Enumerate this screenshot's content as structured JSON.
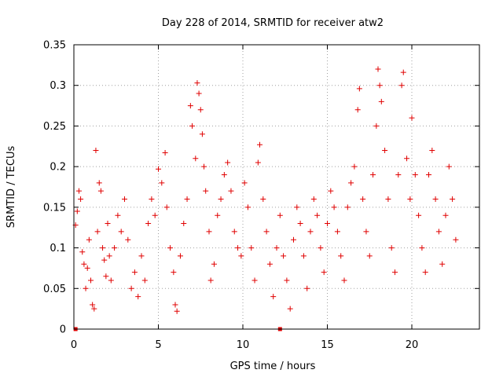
{
  "chart_data": {
    "type": "scatter",
    "title": "Day 228 of 2014, SRMTID for receiver atw2",
    "xlabel": "GPS time / hours",
    "ylabel": "SRMTID / TECUs",
    "xlim": [
      0,
      24
    ],
    "ylim": [
      0,
      0.35
    ],
    "x_ticks": [
      0,
      5,
      10,
      15,
      20
    ],
    "x_tick_labels": [
      "0",
      "5",
      "10",
      "15",
      "20"
    ],
    "y_ticks": [
      0,
      0.05,
      0.1,
      0.15,
      0.2,
      0.25,
      0.3,
      0.35
    ],
    "y_tick_labels": [
      "0",
      "0.05",
      "0.1",
      "0.15",
      "0.2",
      "0.25",
      "0.3",
      "0.35"
    ],
    "grid": true,
    "marker": "plus",
    "color": "#e00000",
    "series": [
      {
        "name": "SRMTID",
        "points": [
          [
            0.1,
            0.128
          ],
          [
            0.2,
            0.145
          ],
          [
            0.3,
            0.17
          ],
          [
            0.4,
            0.16
          ],
          [
            0.5,
            0.095
          ],
          [
            0.6,
            0.08
          ],
          [
            0.7,
            0.05
          ],
          [
            0.8,
            0.075
          ],
          [
            0.9,
            0.11
          ],
          [
            1.0,
            0.06
          ],
          [
            1.1,
            0.03
          ],
          [
            1.2,
            0.025
          ],
          [
            1.3,
            0.22
          ],
          [
            1.4,
            0.12
          ],
          [
            1.5,
            0.18
          ],
          [
            1.6,
            0.17
          ],
          [
            1.7,
            0.1
          ],
          [
            1.8,
            0.085
          ],
          [
            1.9,
            0.065
          ],
          [
            2.0,
            0.13
          ],
          [
            2.1,
            0.09
          ],
          [
            2.2,
            0.06
          ],
          [
            2.4,
            0.1
          ],
          [
            2.6,
            0.14
          ],
          [
            2.8,
            0.12
          ],
          [
            3.0,
            0.16
          ],
          [
            3.2,
            0.11
          ],
          [
            3.4,
            0.05
          ],
          [
            3.6,
            0.07
          ],
          [
            3.8,
            0.04
          ],
          [
            4.0,
            0.09
          ],
          [
            4.2,
            0.06
          ],
          [
            4.4,
            0.13
          ],
          [
            4.6,
            0.16
          ],
          [
            4.8,
            0.14
          ],
          [
            5.0,
            0.197
          ],
          [
            5.2,
            0.18
          ],
          [
            5.4,
            0.217
          ],
          [
            5.5,
            0.15
          ],
          [
            5.7,
            0.1
          ],
          [
            5.9,
            0.07
          ],
          [
            6.0,
            0.03
          ],
          [
            6.1,
            0.022
          ],
          [
            6.3,
            0.09
          ],
          [
            6.5,
            0.13
          ],
          [
            6.7,
            0.16
          ],
          [
            6.9,
            0.275
          ],
          [
            7.0,
            0.25
          ],
          [
            7.2,
            0.21
          ],
          [
            7.3,
            0.303
          ],
          [
            7.4,
            0.29
          ],
          [
            7.5,
            0.27
          ],
          [
            7.6,
            0.24
          ],
          [
            7.7,
            0.2
          ],
          [
            7.8,
            0.17
          ],
          [
            8.0,
            0.12
          ],
          [
            8.1,
            0.06
          ],
          [
            8.3,
            0.08
          ],
          [
            8.5,
            0.14
          ],
          [
            8.7,
            0.16
          ],
          [
            8.9,
            0.19
          ],
          [
            9.1,
            0.205
          ],
          [
            9.3,
            0.17
          ],
          [
            9.5,
            0.12
          ],
          [
            9.7,
            0.1
          ],
          [
            9.9,
            0.09
          ],
          [
            10.1,
            0.18
          ],
          [
            10.3,
            0.15
          ],
          [
            10.5,
            0.1
          ],
          [
            10.7,
            0.06
          ],
          [
            10.9,
            0.205
          ],
          [
            11.0,
            0.227
          ],
          [
            11.2,
            0.16
          ],
          [
            11.4,
            0.12
          ],
          [
            11.6,
            0.08
          ],
          [
            11.8,
            0.04
          ],
          [
            12.0,
            0.1
          ],
          [
            12.2,
            0.14
          ],
          [
            12.4,
            0.09
          ],
          [
            12.6,
            0.06
          ],
          [
            12.8,
            0.025
          ],
          [
            13.0,
            0.11
          ],
          [
            13.2,
            0.15
          ],
          [
            13.4,
            0.13
          ],
          [
            13.6,
            0.09
          ],
          [
            13.8,
            0.05
          ],
          [
            14.0,
            0.12
          ],
          [
            14.2,
            0.16
          ],
          [
            14.4,
            0.14
          ],
          [
            14.6,
            0.1
          ],
          [
            14.8,
            0.07
          ],
          [
            15.0,
            0.13
          ],
          [
            15.2,
            0.17
          ],
          [
            15.4,
            0.15
          ],
          [
            15.6,
            0.12
          ],
          [
            15.8,
            0.09
          ],
          [
            16.0,
            0.06
          ],
          [
            16.2,
            0.15
          ],
          [
            16.4,
            0.18
          ],
          [
            16.6,
            0.2
          ],
          [
            16.8,
            0.27
          ],
          [
            16.9,
            0.296
          ],
          [
            17.1,
            0.16
          ],
          [
            17.3,
            0.12
          ],
          [
            17.5,
            0.09
          ],
          [
            17.7,
            0.19
          ],
          [
            17.9,
            0.25
          ],
          [
            18.0,
            0.32
          ],
          [
            18.1,
            0.3
          ],
          [
            18.2,
            0.28
          ],
          [
            18.4,
            0.22
          ],
          [
            18.6,
            0.16
          ],
          [
            18.8,
            0.1
          ],
          [
            19.0,
            0.07
          ],
          [
            19.2,
            0.19
          ],
          [
            19.4,
            0.3
          ],
          [
            19.5,
            0.316
          ],
          [
            19.7,
            0.21
          ],
          [
            19.9,
            0.16
          ],
          [
            20.0,
            0.26
          ],
          [
            20.2,
            0.19
          ],
          [
            20.4,
            0.14
          ],
          [
            20.6,
            0.1
          ],
          [
            20.8,
            0.07
          ],
          [
            21.0,
            0.19
          ],
          [
            21.2,
            0.22
          ],
          [
            21.4,
            0.16
          ],
          [
            21.6,
            0.12
          ],
          [
            21.8,
            0.08
          ],
          [
            22.0,
            0.14
          ],
          [
            22.2,
            0.2
          ],
          [
            22.4,
            0.16
          ],
          [
            22.6,
            0.11
          ]
        ],
        "bottom_markers": [
          [
            0.1,
            0
          ],
          [
            12.2,
            0
          ]
        ]
      }
    ]
  }
}
